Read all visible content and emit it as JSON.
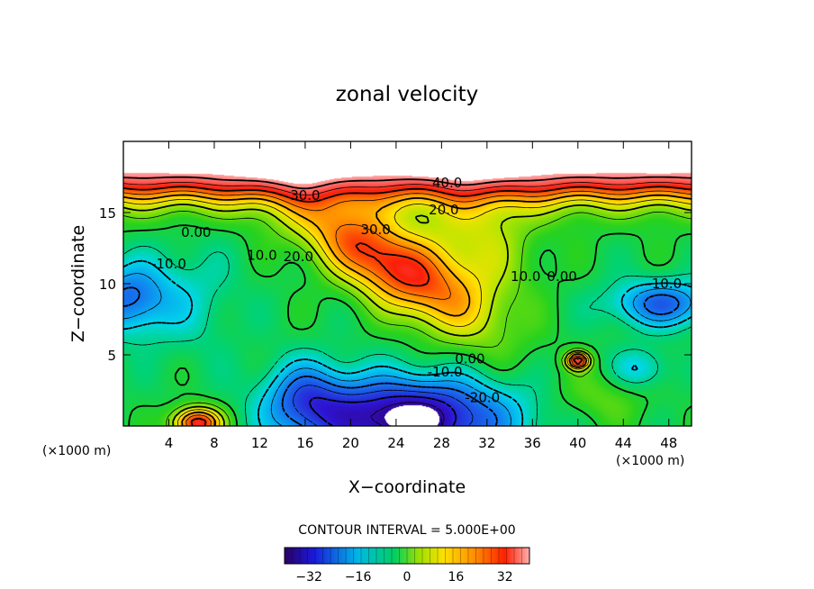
{
  "chart_data": {
    "type": "contour",
    "title": "zonal velocity",
    "xlabel": "X−coordinate",
    "ylabel": "Z−coordinate",
    "x_unit_left": "(×1000 m)",
    "x_unit_right": "(×1000 m)",
    "xlim": [
      0,
      50
    ],
    "ylim": [
      0,
      20
    ],
    "x_ticks": [
      4,
      8,
      12,
      16,
      20,
      24,
      28,
      32,
      36,
      40,
      44,
      48
    ],
    "y_ticks": [
      5,
      10,
      15
    ],
    "contour_interval_text": "CONTOUR INTERVAL = 5.000E+00",
    "contour_interval": 5.0,
    "colorbar": {
      "min": -40,
      "max": 40,
      "ticks": [
        -32,
        -16,
        0,
        16,
        32
      ]
    },
    "contour_labels": [
      {
        "text": "40.0",
        "x": 28.5,
        "y": 17.1
      },
      {
        "text": "30.0",
        "x": 16.0,
        "y": 16.2
      },
      {
        "text": "20.0",
        "x": 28.2,
        "y": 15.2
      },
      {
        "text": "30.0",
        "x": 22.2,
        "y": 13.8
      },
      {
        "text": "20.0",
        "x": 15.4,
        "y": 11.9
      },
      {
        "text": "10.0",
        "x": 12.2,
        "y": 12.0
      },
      {
        "text": "0.00",
        "x": 6.4,
        "y": 13.6
      },
      {
        "text": "-10.0",
        "x": 4.0,
        "y": 11.4
      },
      {
        "text": "10.0",
        "x": 35.4,
        "y": 10.5
      },
      {
        "text": "0.00",
        "x": 38.6,
        "y": 10.5
      },
      {
        "text": "-10.0",
        "x": 47.6,
        "y": 10.0
      },
      {
        "text": "0.00",
        "x": 30.5,
        "y": 4.7
      },
      {
        "text": "-10.0",
        "x": 28.3,
        "y": 3.8
      },
      {
        "text": "-20.0",
        "x": 31.6,
        "y": 2.0
      }
    ],
    "field_features": [
      {
        "kind": "max",
        "x": 22.5,
        "y": 11.8,
        "value": 36
      },
      {
        "kind": "max",
        "x": 25,
        "y": 18.5,
        "value": 45
      },
      {
        "kind": "min",
        "x": 25,
        "y": 0.3,
        "value": -36
      },
      {
        "kind": "min",
        "x": 0.5,
        "y": 9,
        "value": -18
      },
      {
        "kind": "min",
        "x": 47.5,
        "y": 8.5,
        "value": -20
      },
      {
        "kind": "max",
        "x": 6.5,
        "y": 0.2,
        "value": 35
      },
      {
        "kind": "max",
        "x": 40,
        "y": 4.6,
        "value": 32
      }
    ]
  }
}
